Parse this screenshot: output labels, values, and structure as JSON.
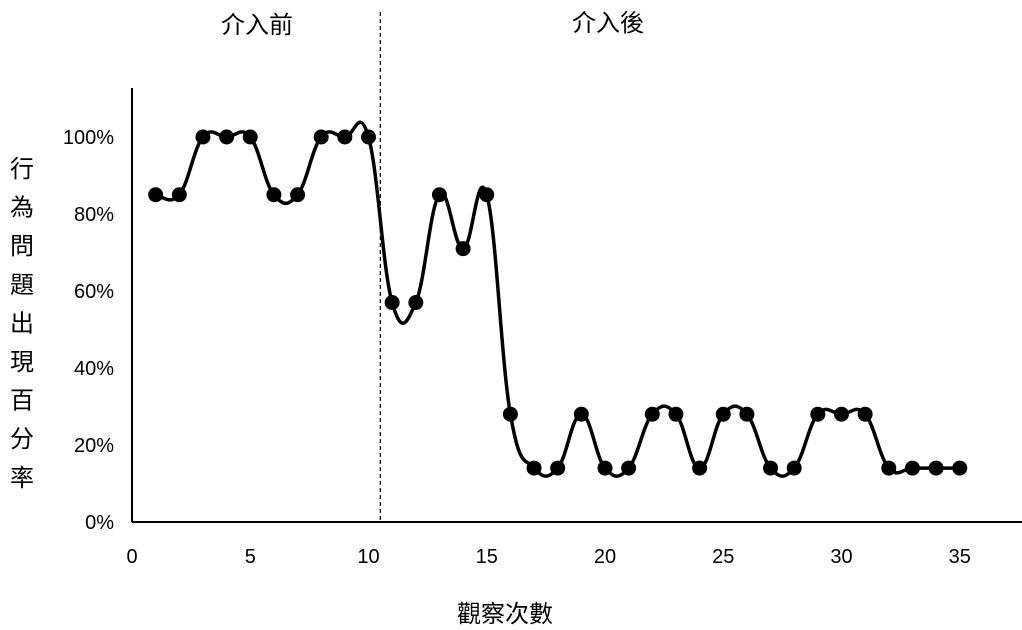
{
  "chart_data": {
    "type": "line",
    "title": "",
    "xlabel": "觀察次數",
    "ylabel": "行為問題出現百分率",
    "phase_labels": [
      "介入前",
      "介入後"
    ],
    "phase_change_after_x": 10.5,
    "xlim": [
      0,
      37
    ],
    "ylim": [
      0,
      1
    ],
    "x_ticks": [
      0,
      5,
      10,
      15,
      20,
      25,
      30,
      35
    ],
    "y_ticks": [
      0,
      0.2,
      0.4,
      0.6,
      0.8,
      1.0
    ],
    "y_tick_labels": [
      "0%",
      "20%",
      "40%",
      "60%",
      "80%",
      "100%"
    ],
    "grid": false,
    "legend": "none",
    "line_color": "#000000",
    "series": [
      {
        "x": [
          1,
          2,
          3,
          4,
          5,
          6,
          7,
          8,
          9,
          10,
          11,
          12,
          13,
          14,
          15,
          16,
          17,
          18,
          19,
          20,
          21,
          22,
          23,
          24,
          25,
          26,
          27,
          28,
          29,
          30,
          31,
          32,
          33,
          34,
          35
        ],
        "y": [
          0.85,
          0.85,
          1.0,
          1.0,
          1.0,
          0.85,
          0.85,
          1.0,
          1.0,
          1.0,
          0.57,
          0.57,
          0.85,
          0.71,
          0.85,
          0.28,
          0.14,
          0.14,
          0.28,
          0.14,
          0.14,
          0.28,
          0.28,
          0.14,
          0.28,
          0.28,
          0.14,
          0.14,
          0.28,
          0.28,
          0.28,
          0.14,
          0.14,
          0.14,
          0.14
        ]
      }
    ]
  }
}
